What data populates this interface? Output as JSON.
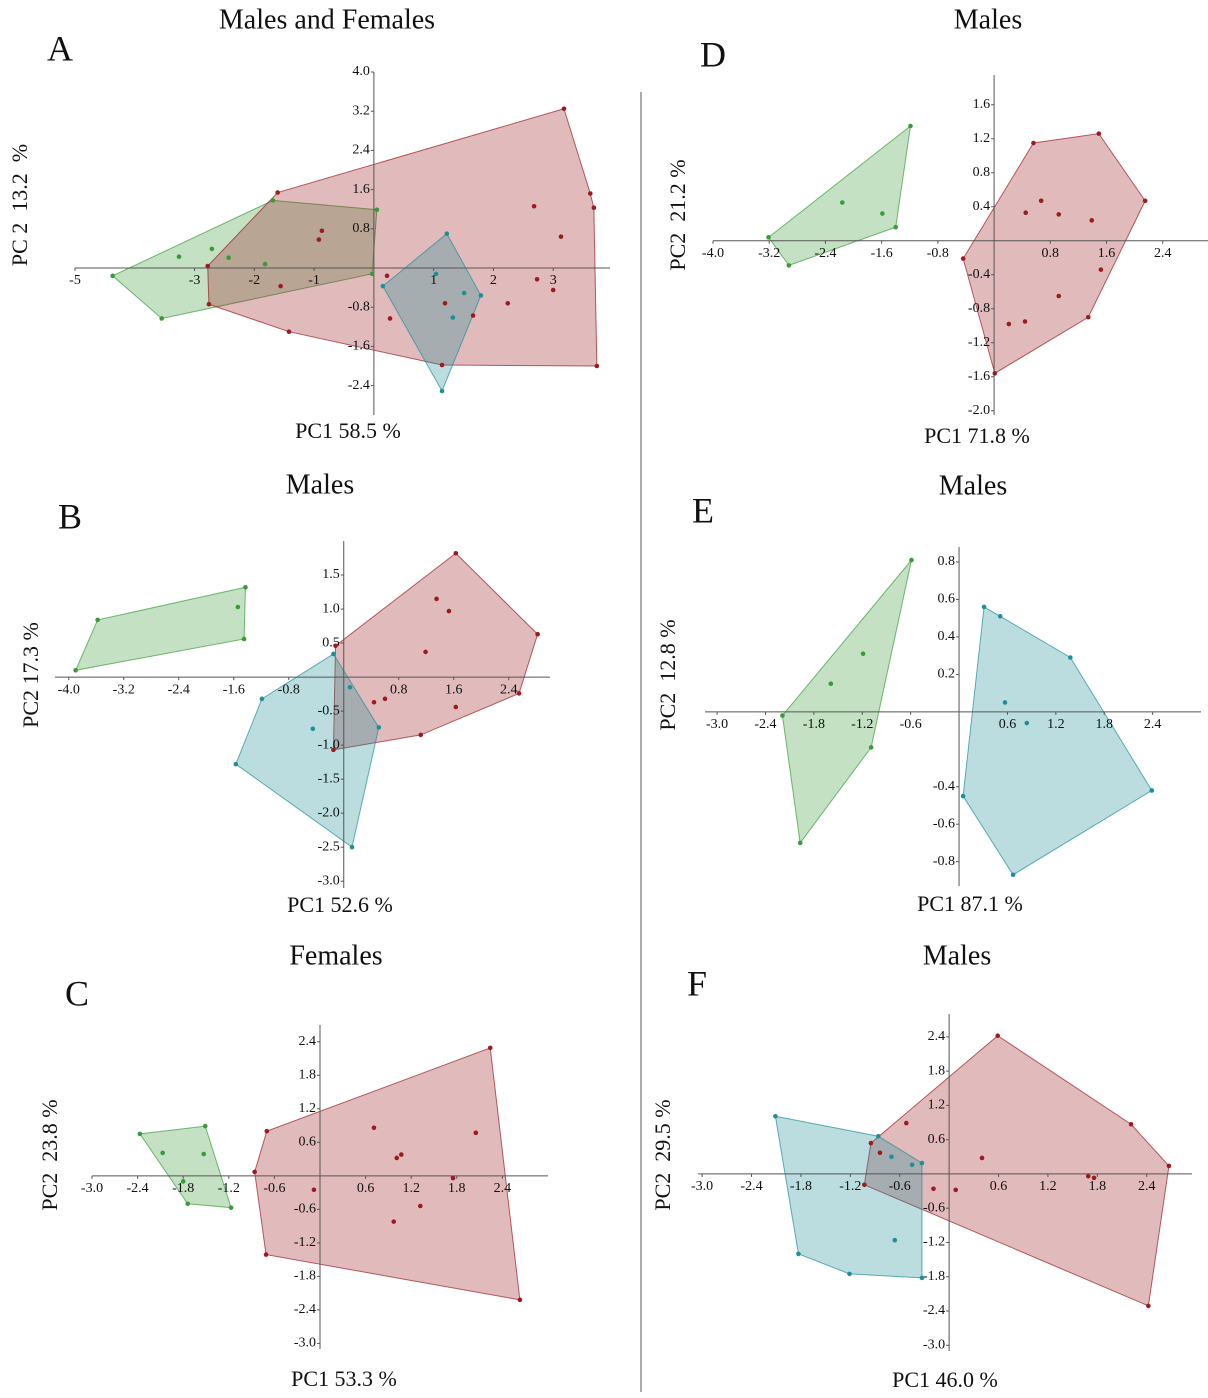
{
  "chart_data": [
    {
      "type": "scatter",
      "letter": "A",
      "title": "Males and Females",
      "xlabel": "PC1 58.5 %",
      "ylabel": "PC 2  13.2  %",
      "xlim": [
        -5,
        3.95
      ],
      "ylim": [
        -3.0,
        4.0
      ],
      "xticks": [
        -5,
        -3,
        -2,
        -1,
        1,
        2,
        3
      ],
      "yticks": [
        {
          "value": 4,
          "label": "4.0"
        },
        3.2,
        2.4,
        1.6,
        0.8,
        -0.8,
        -1.6,
        -2.4
      ],
      "series": [
        {
          "color": "#3a9a3a",
          "x": [
            -4.37,
            -3.55,
            -1.69,
            0.05,
            -0.03,
            -2.71,
            -2.43,
            -3.26,
            -1.82
          ],
          "values": [
            -0.16,
            -1.03,
            1.38,
            1.19,
            -0.12,
            0.39,
            0.21,
            0.23,
            0.08
          ]
        },
        {
          "color": "#9a1c22",
          "x": [
            -1.61,
            3.18,
            3.62,
            3.68,
            3.73,
            -2.76,
            -2.78,
            -1.42,
            2.68,
            3.13,
            -0.87,
            -0.92,
            -1.56,
            0.22,
            2.24,
            2.73,
            3.0,
            0.27,
            1.14,
            1.19,
            1.66
          ],
          "values": [
            1.54,
            3.25,
            1.52,
            1.23,
            -2.0,
            -0.74,
            0.04,
            -1.3,
            1.26,
            0.64,
            0.76,
            0.58,
            -0.37,
            -0.16,
            -0.72,
            -0.23,
            -0.45,
            -1.03,
            -1.98,
            -0.72,
            -0.97
          ]
        },
        {
          "color": "#1f8f96",
          "x": [
            1.22,
            1.79,
            1.14,
            0.15,
            1.04,
            1.51,
            1.32
          ],
          "values": [
            0.7,
            -0.56,
            -2.51,
            -0.37,
            -0.12,
            -0.51,
            -1.01
          ]
        }
      ]
    },
    {
      "type": "scatter",
      "letter": "B",
      "title": "Males",
      "xlabel": "PC1 52.6 %",
      "ylabel": "PC2 17.3 %",
      "xlim": [
        -4.2,
        3.0
      ],
      "ylim": [
        -3.1,
        2.0
      ],
      "xticks": [
        {
          "value": -4,
          "label": "-4.0"
        },
        -3.2,
        -2.4,
        -1.6,
        -0.8,
        0.8,
        1.6,
        2.4
      ],
      "yticks": [
        1.5,
        {
          "value": 1,
          "label": "1.0"
        },
        0.5,
        -0.5,
        {
          "value": -1,
          "label": "-1.0"
        },
        -1.5,
        {
          "value": -2,
          "label": "-2.0"
        },
        -2.5,
        {
          "value": -3,
          "label": "-3.0"
        }
      ],
      "series": [
        {
          "color": "#3a9a3a",
          "x": [
            -3.9,
            -3.58,
            -1.43,
            -1.45,
            -1.54
          ],
          "values": [
            0.1,
            0.84,
            1.32,
            0.56,
            1.03
          ]
        },
        {
          "color": "#9a1c22",
          "x": [
            1.63,
            2.82,
            2.55,
            1.12,
            -0.15,
            -0.12,
            1.35,
            1.53,
            1.19,
            1.63,
            0.6,
            0.44
          ],
          "values": [
            1.82,
            0.63,
            -0.24,
            -0.85,
            -1.07,
            0.46,
            1.15,
            0.97,
            0.37,
            -0.44,
            -0.32,
            -0.37
          ]
        },
        {
          "color": "#1f8f96",
          "x": [
            -1.19,
            -1.57,
            0.12,
            0.51,
            -0.15,
            0.09,
            -0.45
          ],
          "values": [
            -0.32,
            -1.28,
            -2.5,
            -0.74,
            0.34,
            -0.15,
            -0.76
          ]
        }
      ]
    },
    {
      "type": "scatter",
      "letter": "C",
      "title": "Females",
      "xlabel": "PC1 53.3 %",
      "ylabel": "PC2  23.8 %",
      "xlim": [
        -3.0,
        3.0
      ],
      "ylim": [
        -3.1,
        2.7
      ],
      "xticks": [
        {
          "value": -3,
          "label": "-3.0"
        },
        -2.4,
        -1.8,
        -1.2,
        -0.6,
        0.6,
        1.2,
        1.8,
        2.4
      ],
      "yticks": [
        2.4,
        1.8,
        1.2,
        0.6,
        -0.6,
        -1.2,
        -1.8,
        -2.4,
        {
          "value": -3,
          "label": "-3.0"
        }
      ],
      "series": [
        {
          "color": "#3a9a3a",
          "x": [
            -2.37,
            -1.51,
            -1.17,
            -1.74,
            -1.53,
            -1.8,
            -2.07
          ],
          "values": [
            0.75,
            0.89,
            -0.57,
            -0.5,
            0.39,
            -0.1,
            0.41
          ]
        },
        {
          "color": "#9a1c22",
          "x": [
            -0.7,
            2.24,
            2.63,
            -0.71,
            -0.86,
            0.71,
            1.01,
            1.07,
            2.05,
            1.75,
            -0.08,
            0.97,
            1.32
          ],
          "values": [
            0.8,
            2.29,
            -2.22,
            -1.41,
            0.07,
            0.86,
            0.32,
            0.38,
            0.77,
            -0.04,
            -0.25,
            -0.82,
            -0.54
          ]
        }
      ]
    },
    {
      "type": "scatter",
      "letter": "D",
      "title": "Males",
      "xlabel": "PC1 71.8 %",
      "ylabel": "PC2  21.2 %",
      "xlim": [
        -4.0,
        3.4
      ],
      "ylim": [
        -2.05,
        1.95
      ],
      "xticks": [
        {
          "value": -4,
          "label": "-4.0"
        },
        -3.2,
        -2.4,
        -1.6,
        -0.8,
        0.8,
        1.6,
        2.4
      ],
      "yticks": [
        1.6,
        1.2,
        0.8,
        0.4,
        -0.4,
        -0.8,
        -1.2,
        -1.6,
        {
          "value": -2,
          "label": "-2.0"
        }
      ],
      "series": [
        {
          "color": "#3a9a3a",
          "x": [
            -1.19,
            -1.4,
            -2.92,
            -3.21,
            -1.59,
            -2.16
          ],
          "values": [
            1.35,
            0.16,
            -0.29,
            0.04,
            0.32,
            0.45
          ]
        },
        {
          "color": "#9a1c22",
          "x": [
            0.56,
            1.49,
            2.15,
            1.34,
            0.01,
            -0.44,
            0.67,
            0.45,
            0.92,
            1.52,
            0.92,
            0.21,
            0.44,
            1.39
          ],
          "values": [
            1.15,
            1.26,
            0.47,
            -0.9,
            -1.56,
            -0.21,
            0.47,
            0.33,
            0.31,
            -0.34,
            -0.65,
            -0.98,
            -0.95,
            0.24
          ]
        }
      ]
    },
    {
      "type": "scatter",
      "letter": "E",
      "title": "Males",
      "xlabel": "PC1 87.1 %",
      "ylabel": "PC2  12.8 %",
      "xlim": [
        -3.15,
        3.0
      ],
      "ylim": [
        -0.93,
        0.88
      ],
      "xticks": [
        {
          "value": -3,
          "label": "-3.0"
        },
        -2.4,
        -1.8,
        -1.2,
        -0.6,
        0.6,
        1.2,
        1.8,
        2.4
      ],
      "yticks": [
        0.8,
        0.6,
        0.4,
        0.2,
        -0.4,
        -0.6,
        -0.8
      ],
      "series": [
        {
          "color": "#3a9a3a",
          "x": [
            -0.59,
            -1.09,
            -1.97,
            -2.19,
            -1.19,
            -1.59
          ],
          "values": [
            0.81,
            -0.19,
            -0.7,
            -0.02,
            0.31,
            0.15
          ]
        },
        {
          "color": "#1f8f96",
          "x": [
            0.31,
            0.51,
            1.38,
            2.39,
            0.67,
            0.05,
            0.57,
            0.84
          ],
          "values": [
            0.56,
            0.51,
            0.29,
            -0.42,
            -0.87,
            -0.45,
            0.05,
            -0.06
          ]
        }
      ]
    },
    {
      "type": "scatter",
      "letter": "F",
      "title": "Males",
      "xlabel": "PC1 46.0 %",
      "ylabel": "PC2  29.5 %",
      "xlim": [
        -3.05,
        2.95
      ],
      "ylim": [
        -3.1,
        2.8
      ],
      "xticks": [
        {
          "value": -3,
          "label": "-3.0"
        },
        -2.4,
        -1.8,
        -1.2,
        -0.6,
        0.6,
        1.2,
        1.8,
        2.4
      ],
      "yticks": [
        2.4,
        1.8,
        1.2,
        0.6,
        -0.6,
        -1.2,
        -1.8,
        -2.4,
        {
          "value": -3,
          "label": "-3.0"
        }
      ],
      "series": [
        {
          "color": "#9a1c22",
          "x": [
            0.59,
            2.67,
            2.42,
            -1.03,
            -0.95,
            -0.52,
            2.21,
            1.69,
            1.76,
            0.4,
            0.08,
            -0.19,
            -0.84
          ],
          "values": [
            2.42,
            0.14,
            -2.31,
            -0.19,
            0.54,
            0.89,
            0.87,
            -0.04,
            -0.07,
            0.28,
            -0.28,
            -0.26,
            0.37
          ]
        },
        {
          "color": "#1f8f96",
          "x": [
            -2.11,
            -0.86,
            -0.33,
            -0.33,
            -1.21,
            -1.83,
            -0.7,
            -0.45,
            -0.66
          ],
          "values": [
            1.01,
            0.66,
            0.19,
            -1.82,
            -1.75,
            -1.4,
            0.3,
            0.16,
            -1.16
          ]
        }
      ]
    }
  ]
}
